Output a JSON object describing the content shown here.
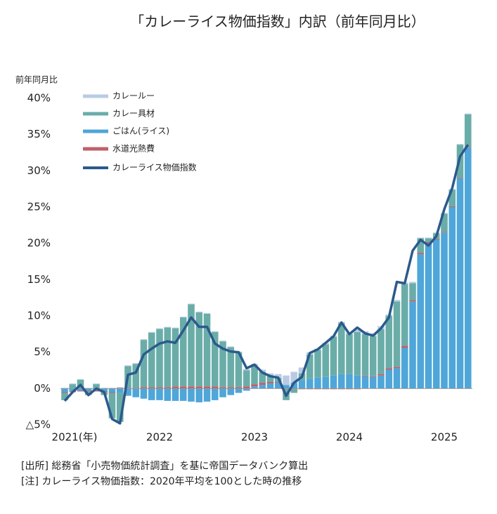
{
  "chart_data": {
    "type": "stacked_bar_line",
    "title": "「カレーライス物価指数」内訳（前年同月比）",
    "y_label": "前年同月比",
    "categories": [
      "2021(年)",
      null,
      null,
      null,
      null,
      null,
      null,
      null,
      null,
      null,
      null,
      null,
      "2022",
      null,
      null,
      null,
      null,
      null,
      null,
      null,
      null,
      null,
      null,
      null,
      "2023",
      null,
      null,
      null,
      null,
      null,
      null,
      null,
      null,
      null,
      null,
      null,
      "2024",
      null,
      null,
      null,
      null,
      null,
      null,
      null,
      null,
      null,
      null,
      null,
      "2025",
      null,
      null,
      null
    ],
    "ylim": [
      -5,
      40
    ],
    "yticks": [
      {
        "value": 40,
        "label": "40%"
      },
      {
        "value": 35,
        "label": "35%"
      },
      {
        "value": 30,
        "label": "30%"
      },
      {
        "value": 25,
        "label": "25%"
      },
      {
        "value": 20,
        "label": "20%"
      },
      {
        "value": 15,
        "label": "15%"
      },
      {
        "value": 10,
        "label": "10%"
      },
      {
        "value": 5,
        "label": "5%"
      },
      {
        "value": 0,
        "label": "0%"
      },
      {
        "value": -5,
        "label": "△5%"
      }
    ],
    "series": [
      {
        "name": "カレールー",
        "color": "#b9cbe4",
        "values": [
          0.1,
          0.1,
          0.1,
          0.1,
          0.1,
          0.1,
          0.1,
          0.1,
          0.1,
          0.1,
          0.1,
          0.1,
          0.1,
          0.1,
          0.1,
          0.1,
          0.1,
          0.1,
          0.1,
          0.1,
          0.1,
          0.1,
          0.1,
          0.2,
          0.3,
          0.3,
          0.4,
          0.5,
          1.3,
          1.5,
          0.8,
          0.3,
          0.2,
          0.2,
          0.2,
          0.2,
          0.2,
          0.3,
          0.4,
          0.4,
          0.4,
          0.2,
          0.2,
          0.2,
          0.2,
          0.1,
          0.1,
          0.1,
          0.1,
          0.1,
          0.1,
          0.1
        ]
      },
      {
        "name": "カレー具材",
        "color": "#6aada8",
        "values": [
          -1.0,
          0.6,
          1.2,
          -0.5,
          0.6,
          -0.4,
          -3.5,
          -4.0,
          3.0,
          3.3,
          6.5,
          7.5,
          8.0,
          8.2,
          8.0,
          9.5,
          11.3,
          10.2,
          10.0,
          7.5,
          6.3,
          5.5,
          4.8,
          2.2,
          2.5,
          1.5,
          0.8,
          0.6,
          -1.5,
          -0.5,
          1.0,
          3.4,
          3.8,
          4.5,
          5.3,
          7.0,
          5.5,
          6.0,
          5.7,
          5.5,
          6.2,
          7.2,
          9.0,
          8.5,
          2.3,
          2.0,
          0.5,
          0.8,
          2.5,
          2.3,
          4.5,
          4.5
        ]
      },
      {
        "name": "ごはん(ライス)",
        "color": "#4ea6d9",
        "values": [
          -0.5,
          -0.4,
          -0.3,
          -0.3,
          -0.3,
          -0.4,
          -0.5,
          -0.6,
          -1.0,
          -1.2,
          -1.4,
          -1.6,
          -1.6,
          -1.7,
          -1.7,
          -1.7,
          -1.8,
          -1.9,
          -1.8,
          -1.6,
          -1.2,
          -0.9,
          -0.6,
          -0.3,
          0.3,
          0.5,
          0.7,
          0.8,
          0.5,
          0.8,
          1.1,
          1.3,
          1.5,
          1.6,
          1.8,
          2.0,
          2.0,
          1.8,
          1.7,
          1.6,
          1.8,
          2.6,
          2.8,
          5.6,
          12.0,
          18.5,
          20.0,
          20.5,
          21.5,
          25.0,
          29.0,
          33.2
        ]
      },
      {
        "name": "水道光熱費",
        "color": "#c0606a",
        "values": [
          -0.1,
          -0.1,
          -0.1,
          -0.1,
          -0.1,
          -0.1,
          -0.1,
          0.1,
          0.1,
          0.1,
          0.2,
          0.2,
          0.2,
          0.2,
          0.3,
          0.3,
          0.3,
          0.3,
          0.3,
          0.3,
          0.2,
          0.2,
          0.2,
          0.3,
          0.3,
          0.3,
          0.2,
          0.1,
          -0.1,
          -0.1,
          -0.1,
          -0.1,
          -0.1,
          -0.1,
          -0.1,
          -0.1,
          -0.1,
          -0.1,
          0.1,
          0.1,
          0.2,
          0.2,
          0.2,
          0.3,
          0.2,
          0.2,
          0.2,
          0.1,
          0.1,
          0.1,
          0.1,
          0.1
        ]
      }
    ],
    "line": {
      "name": "カレーライス物価指数",
      "color": "#2b5a8c",
      "values": [
        -1.7,
        -0.5,
        0.5,
        -0.9,
        0,
        -0.5,
        -4.2,
        -4.8,
        1.9,
        2.2,
        4.7,
        5.5,
        6.2,
        6.5,
        6.3,
        8.0,
        9.8,
        8.5,
        8.5,
        6.2,
        5.5,
        5.1,
        5.0,
        2.8,
        3.3,
        2.2,
        1.7,
        1.5,
        -1.0,
        0.8,
        1.6,
        4.9,
        5.4,
        6.3,
        7.2,
        9.1,
        7.5,
        8.4,
        7.6,
        7.3,
        8.3,
        9.8,
        14.7,
        14.5,
        19.0,
        20.5,
        19.7,
        21.0,
        24.7,
        27.6,
        32.0,
        33.6
      ]
    },
    "notes": [
      "[出所]  総務省「小売物価統計調査」を基に帝国データバンク算出",
      "[注]  カレーライス物価指数：2020年平均を100とした時の推移"
    ]
  }
}
